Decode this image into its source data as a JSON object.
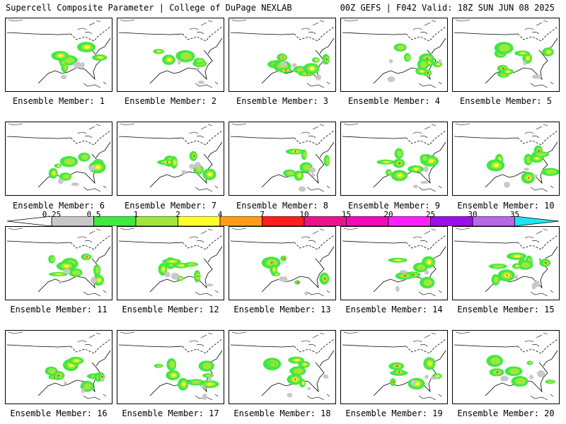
{
  "header": {
    "left": "Supercell Composite Parameter | College of DuPage NEXLAB",
    "right": "00Z GEFS | F042 Valid: 18Z SUN JUN 08 2025"
  },
  "caption_prefix": "Ensemble Member: ",
  "members": [
    "1",
    "2",
    "3",
    "4",
    "5",
    "6",
    "7",
    "8",
    "9",
    "10",
    "11",
    "12",
    "13",
    "14",
    "15",
    "16",
    "17",
    "18",
    "19",
    "20"
  ],
  "colorbar": {
    "labels": [
      "0.25",
      "0.5",
      "1",
      "2",
      "4",
      "7",
      "10",
      "15",
      "20",
      "25",
      "30",
      "35"
    ],
    "colors": [
      "#c8c8c8",
      "#41e841",
      "#a0e63c",
      "#ffff30",
      "#ff9a1c",
      "#ff1e1e",
      "#e6168a",
      "#f00ab8",
      "#ff20ff",
      "#9b10e6",
      "#b46ae6",
      "#1ee6f0"
    ]
  }
}
